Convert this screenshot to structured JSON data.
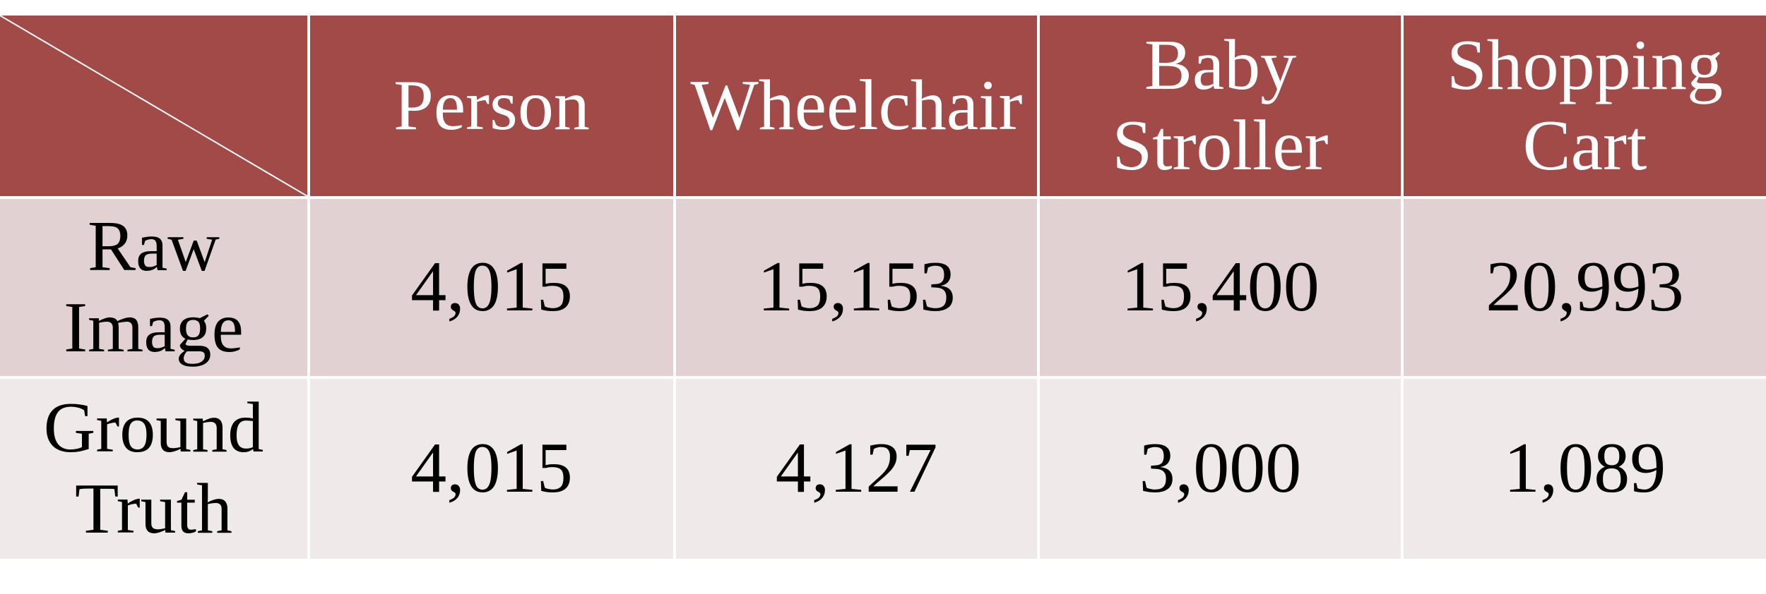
{
  "chart_data": {
    "type": "table",
    "columns": [
      "Person",
      "Wheelchair",
      "Baby\nStroller",
      "Shopping\nCart"
    ],
    "rows": [
      {
        "label": "Raw\nImage",
        "values": [
          "4,015",
          "15,153",
          "15,400",
          "20,993"
        ]
      },
      {
        "label": "Ground\nTruth",
        "values": [
          "4,015",
          "4,127",
          "3,000",
          "1,089"
        ]
      }
    ]
  },
  "colors": {
    "header_bg": "#a24a48",
    "header_text": "#ffffff",
    "row1_bg": "#e1d1d2",
    "row2_bg": "#efe9e9",
    "grid_line": "#ffffff"
  }
}
